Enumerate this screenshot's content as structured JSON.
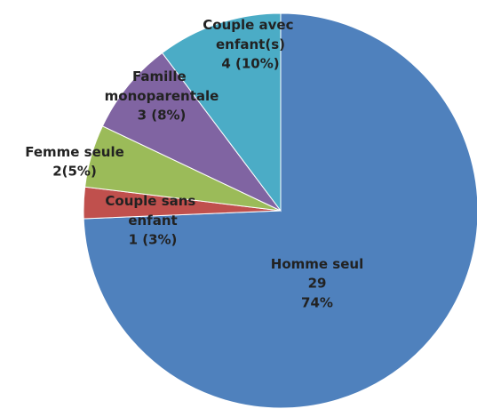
{
  "chart_data": {
    "type": "pie",
    "categories": [
      "Homme seul",
      "Couple sans enfant",
      "Femme seule",
      "Famille monoparentale",
      "Couple avec enfant(s)"
    ],
    "values": [
      29,
      1,
      2,
      3,
      4
    ],
    "value_labels": [
      [
        "29",
        "74%"
      ],
      [
        "1 (3%)"
      ],
      [
        "2(5%)"
      ],
      [
        "3 (8%)"
      ],
      [
        "4 (10%)"
      ]
    ],
    "colors": [
      "#4f81bd",
      "#c0504d",
      "#9bbb59",
      "#8064a2",
      "#4bacc6"
    ]
  }
}
